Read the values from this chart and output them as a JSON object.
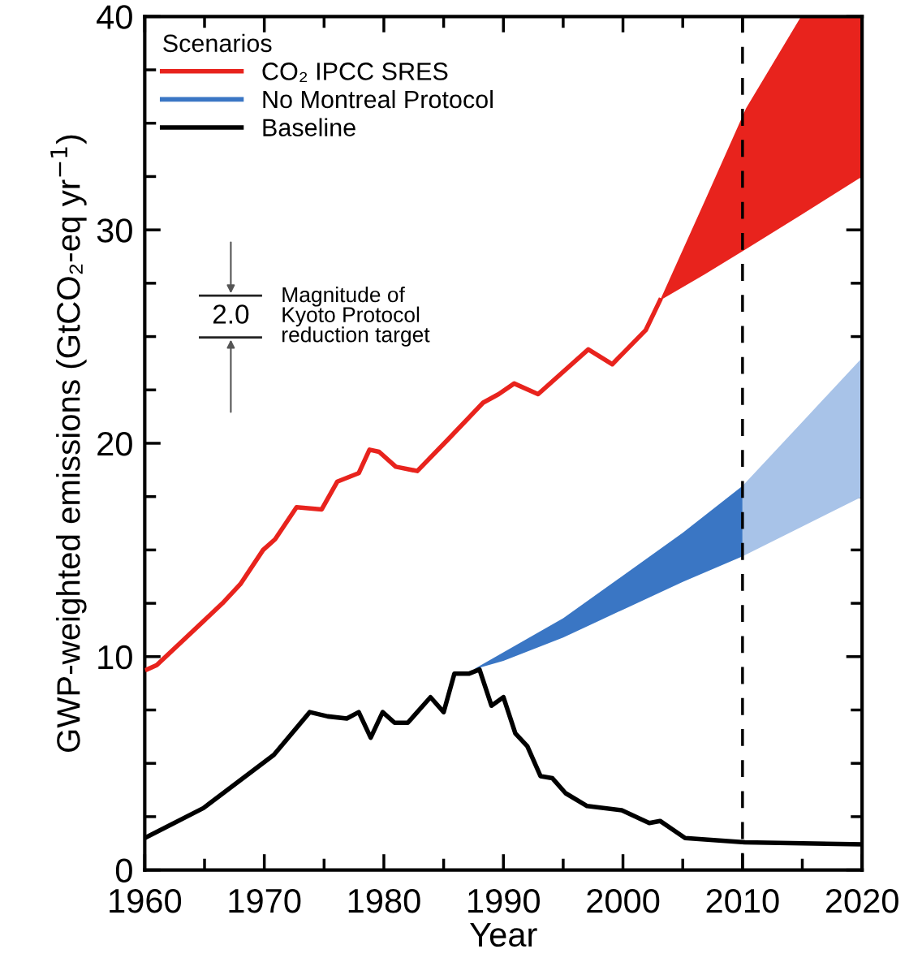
{
  "chart_data": {
    "type": "line",
    "xlabel": "Year",
    "ylabel": "GWP-weighted emissions (GtCO₂-eq yr$^{−1}$)",
    "legend_title": "Scenarios",
    "legend": "top left",
    "xlim": [
      1960,
      2020
    ],
    "ylim": [
      0,
      40
    ],
    "xticks": [
      1960,
      {
        "value": 1965,
        "label": null
      },
      1970,
      {
        "value": 1975,
        "label": null
      },
      1980,
      {
        "value": 1985,
        "label": null
      },
      1990,
      {
        "value": 1995,
        "label": null
      },
      2000,
      {
        "value": 2005,
        "label": null
      },
      2010,
      {
        "value": 2015,
        "label": null
      },
      2020
    ],
    "yticks": [
      0,
      {
        "value": 2.5,
        "label": null
      },
      {
        "value": 5,
        "label": null
      },
      {
        "value": 7.5,
        "label": null
      },
      10,
      {
        "value": 12.5,
        "label": null
      },
      {
        "value": 15,
        "label": null
      },
      {
        "value": 17.5,
        "label": null
      },
      20,
      {
        "value": 22.5,
        "label": null
      },
      {
        "value": 25,
        "label": null
      },
      {
        "value": 27.5,
        "label": null
      },
      30,
      {
        "value": 32.5,
        "label": null
      },
      {
        "value": 35,
        "label": null
      },
      {
        "value": 37.5,
        "label": null
      },
      40
    ],
    "grid": false,
    "marker": "none",
    "line_style": "solid",
    "series": [
      {
        "name": "CO₂ IPCC SRES",
        "color": "#e8231d",
        "x": [
          1960.2,
          1961,
          1966.5,
          1968,
          1969.9,
          1970.9,
          1972.7,
          1974.8,
          1976.1,
          1977.9,
          1978.8,
          1979.6,
          1981,
          1982.8,
          1985.4,
          1988.3,
          1989.6,
          1990.9,
          1992.9,
          1997.1,
          1999.1,
          2001.9,
          2003.1,
          2006.8,
          2010.3,
          2014.9,
          2020
        ],
        "values": [
          9.4,
          9.6,
          12.5,
          13.4,
          15.0,
          15.5,
          17.0,
          16.9,
          18.2,
          18.6,
          19.7,
          19.6,
          18.9,
          18.7,
          20.2,
          21.9,
          22.3,
          22.8,
          22.3,
          24.4,
          23.7,
          25.3,
          26.7,
          null,
          null,
          null,
          null
        ],
        "lower": [
          null,
          null,
          null,
          null,
          null,
          null,
          null,
          null,
          null,
          null,
          null,
          null,
          null,
          null,
          null,
          null,
          null,
          null,
          null,
          null,
          null,
          null,
          26.7,
          27.9,
          29.1,
          30.7,
          32.5
        ],
        "upper": [
          null,
          null,
          null,
          null,
          null,
          null,
          null,
          null,
          null,
          null,
          null,
          null,
          null,
          null,
          null,
          null,
          null,
          null,
          null,
          null,
          null,
          null,
          26.7,
          31.3,
          35.7,
          40,
          40
        ]
      },
      {
        "name": "No Montreal Protocol",
        "color": "#3a76c4",
        "x": [
          1987.5,
          1990,
          1995,
          2000,
          2005,
          2010
        ],
        "values": [
          null,
          null,
          null,
          null,
          null,
          null
        ],
        "lower": [
          9.4,
          9.8,
          10.9,
          12.2,
          13.5,
          14.7
        ],
        "upper": [
          9.4,
          10.2,
          11.8,
          13.8,
          15.8,
          18.0
        ]
      },
      {
        "color": "#a8c3e8",
        "x": [
          2010,
          2015,
          2020
        ],
        "values": [
          null,
          null,
          null
        ],
        "lower": [
          14.7,
          16.1,
          17.5
        ],
        "upper": [
          18.0,
          21.0,
          24.0
        ]
      },
      {
        "name": "Baseline",
        "color": "#000000",
        "x": [
          1960,
          1964.9,
          1970.8,
          1973.8,
          1975.3,
          1976.9,
          1977.9,
          1978.9,
          1979.9,
          1980.9,
          1982,
          1983.9,
          1985,
          1985.9,
          1987.1,
          1988,
          1989,
          1990,
          1991,
          1992,
          1993.1,
          1994.1,
          1995.2,
          1997,
          1999.9,
          2002.2,
          2003.1,
          2005.2,
          2010.2,
          2020
        ],
        "values": [
          1.5,
          2.9,
          5.4,
          7.4,
          7.2,
          7.1,
          7.4,
          6.2,
          7.4,
          6.9,
          6.9,
          8.1,
          7.4,
          9.2,
          9.2,
          9.4,
          7.7,
          8.1,
          6.4,
          5.8,
          4.4,
          4.3,
          3.6,
          3.0,
          2.8,
          2.2,
          2.3,
          1.5,
          1.3,
          1.2
        ]
      }
    ],
    "ref_lines": [
      {
        "axis": "x",
        "value": 2010,
        "color": "#000000",
        "line_style": "dashed"
      }
    ],
    "annotations": [
      "2.0",
      "Magnitude of\nKyoto Protocol\nreduction target"
    ]
  }
}
